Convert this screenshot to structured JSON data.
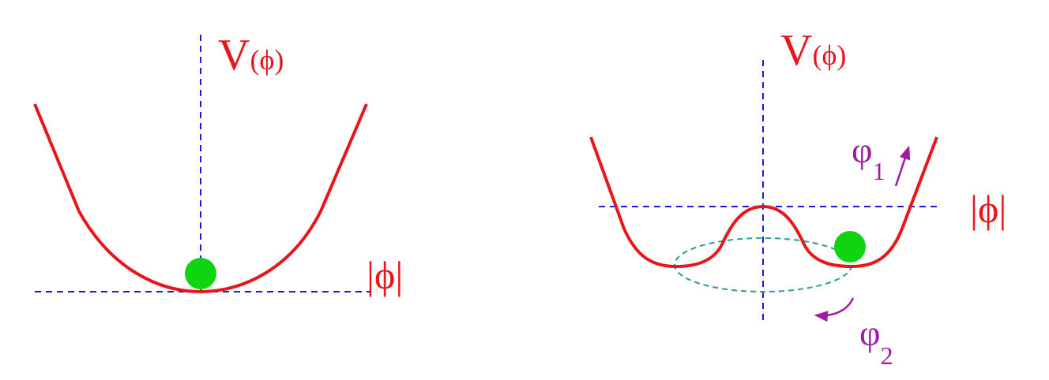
{
  "colors": {
    "curve": "#e8161b",
    "axis": "#1a1adc",
    "ball": "#11d411",
    "orbit": "#2a9d9a",
    "mode": "#a31aa3"
  },
  "left_panel": {
    "axis_label": "V(ϕ)",
    "axis_label_parts": {
      "v": "V",
      "paren_open": "(",
      "phi": "ϕ",
      "paren_close": ")"
    },
    "field_label": "|ϕ|"
  },
  "right_panel": {
    "axis_label": "V(ϕ)",
    "axis_label_parts": {
      "v": "V",
      "paren_open": "(",
      "phi": "ϕ",
      "paren_close": ")"
    },
    "field_label": "|ϕ|",
    "mode_1": {
      "symbol": "φ",
      "subscript": "1"
    },
    "mode_2": {
      "symbol": "φ",
      "subscript": "2"
    }
  }
}
